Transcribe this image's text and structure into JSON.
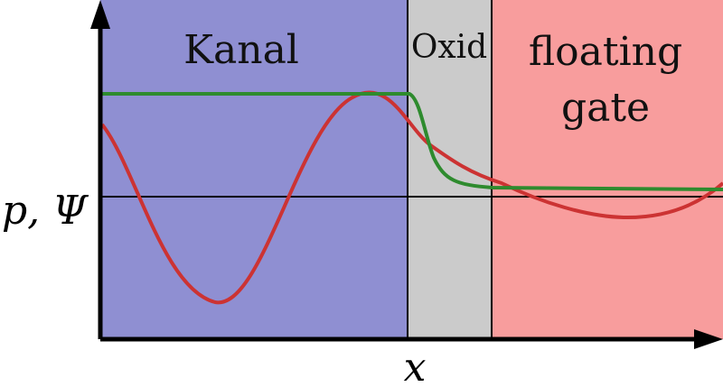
{
  "regions": {
    "channel": {
      "label": "Kanal",
      "color": "#8f8fd2"
    },
    "oxide": {
      "label": "Oxid",
      "color": "#cbcbcb"
    },
    "floating_gate": {
      "label_line1": "floating",
      "label_line2": "gate",
      "color": "#f89d9d"
    }
  },
  "axes": {
    "y_label": "p, Ψ",
    "x_label": "x"
  },
  "curves": {
    "p_color": "#cc3333",
    "psi_color": "#2e8b2e"
  }
}
